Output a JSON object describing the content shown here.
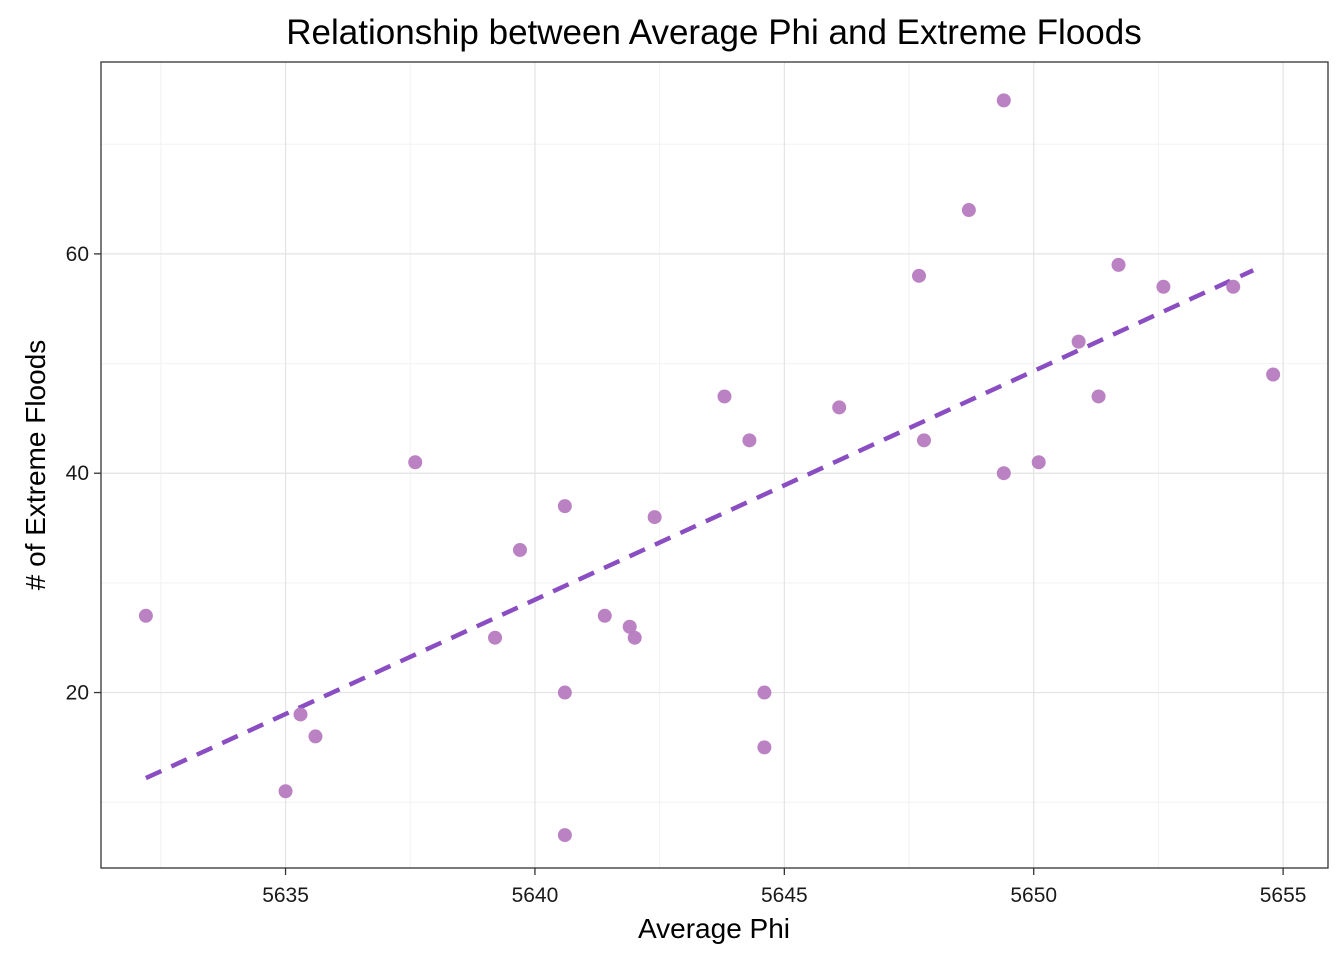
{
  "chart_data": {
    "type": "scatter",
    "title": "Relationship between Average Phi and Extreme Floods",
    "xlabel": "Average Phi",
    "ylabel": "# of Extreme Floods",
    "xlim": [
      5631.3,
      5655.9
    ],
    "ylim": [
      4.0,
      77.5
    ],
    "x_ticks": [
      5635,
      5640,
      5645,
      5650,
      5655
    ],
    "y_ticks": [
      20,
      40,
      60
    ],
    "grid": true,
    "point_color": "#b77bc0",
    "trend_color": "#8a4ec2",
    "series": [
      {
        "points": [
          {
            "x": 5632.2,
            "y": 27
          },
          {
            "x": 5635.0,
            "y": 11
          },
          {
            "x": 5635.3,
            "y": 18
          },
          {
            "x": 5635.6,
            "y": 16
          },
          {
            "x": 5637.6,
            "y": 41
          },
          {
            "x": 5639.2,
            "y": 25
          },
          {
            "x": 5639.7,
            "y": 33
          },
          {
            "x": 5640.6,
            "y": 20
          },
          {
            "x": 5640.6,
            "y": 7
          },
          {
            "x": 5640.6,
            "y": 37
          },
          {
            "x": 5641.4,
            "y": 27
          },
          {
            "x": 5641.9,
            "y": 26
          },
          {
            "x": 5642.0,
            "y": 25
          },
          {
            "x": 5642.4,
            "y": 36
          },
          {
            "x": 5643.8,
            "y": 47
          },
          {
            "x": 5644.3,
            "y": 43
          },
          {
            "x": 5644.6,
            "y": 20
          },
          {
            "x": 5644.6,
            "y": 15
          },
          {
            "x": 5646.1,
            "y": 46
          },
          {
            "x": 5647.7,
            "y": 58
          },
          {
            "x": 5647.8,
            "y": 43
          },
          {
            "x": 5648.7,
            "y": 64
          },
          {
            "x": 5649.4,
            "y": 74
          },
          {
            "x": 5649.4,
            "y": 40
          },
          {
            "x": 5650.1,
            "y": 41
          },
          {
            "x": 5650.9,
            "y": 52
          },
          {
            "x": 5651.3,
            "y": 47
          },
          {
            "x": 5651.7,
            "y": 59
          },
          {
            "x": 5652.6,
            "y": 57
          },
          {
            "x": 5654.0,
            "y": 57
          },
          {
            "x": 5654.8,
            "y": 49
          }
        ]
      }
    ],
    "trend_line": {
      "x": [
        5632.2,
        5654.4
      ],
      "y": [
        12.2,
        58.5
      ],
      "style": "dashed"
    }
  }
}
